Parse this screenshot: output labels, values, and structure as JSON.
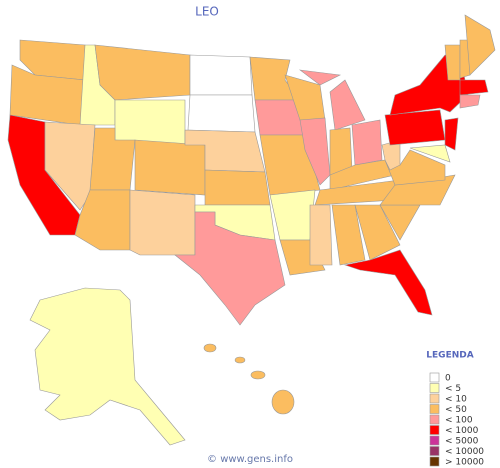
{
  "title": "LEO",
  "legend": {
    "title": "LEGENDA",
    "items": [
      {
        "label": "0",
        "color": "#ffffff"
      },
      {
        "label": "< 5",
        "color": "#ffffb3"
      },
      {
        "label": "< 10",
        "color": "#fdd19c"
      },
      {
        "label": "< 50",
        "color": "#fbbd60"
      },
      {
        "label": "< 100",
        "color": "#ff9a9a"
      },
      {
        "label": "< 1000",
        "color": "#ff0000"
      },
      {
        "label": "< 5000",
        "color": "#cc3399"
      },
      {
        "label": "< 10000",
        "color": "#993366"
      },
      {
        "label": "> 10000",
        "color": "#663300"
      }
    ]
  },
  "footer": "© www.gens.info"
}
